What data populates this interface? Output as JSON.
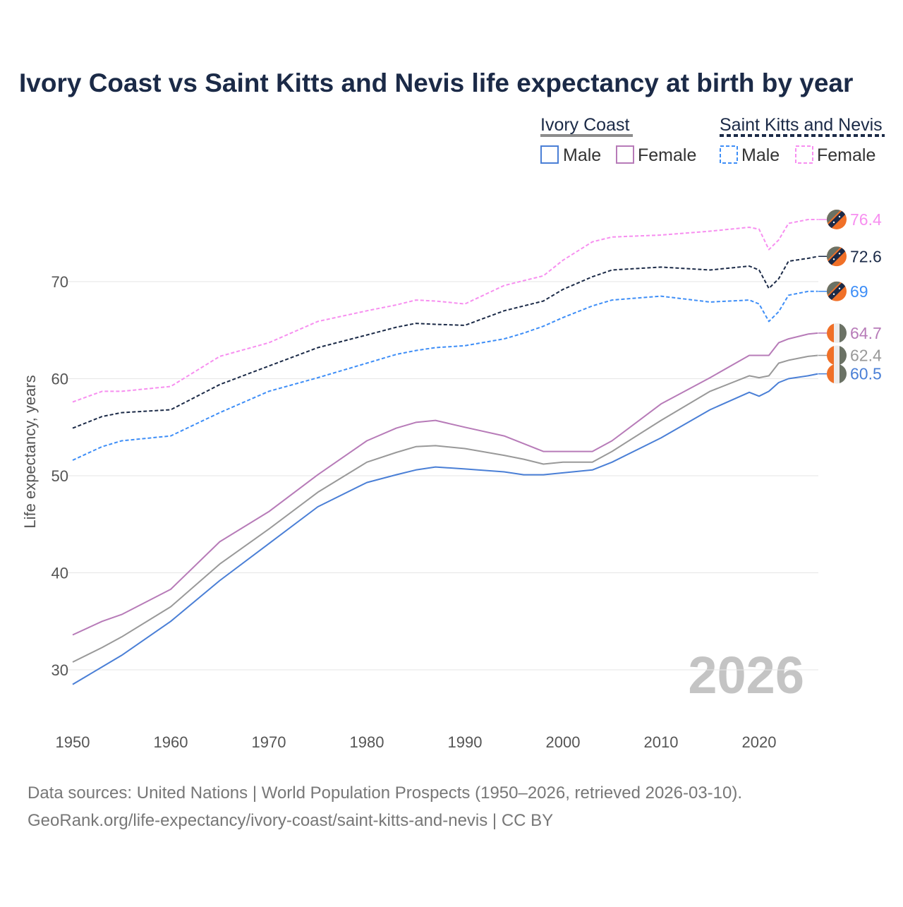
{
  "chart_data": {
    "type": "line",
    "title": "Ivory Coast vs Saint Kitts and Nevis life expectancy at birth by year",
    "xlabel": "",
    "ylabel": "Life expectancy, years",
    "xlim": [
      1950,
      2026
    ],
    "ylim": [
      26,
      79
    ],
    "x_ticks": [
      1950,
      1960,
      1970,
      1980,
      1990,
      2000,
      2010,
      2020
    ],
    "y_ticks": [
      30,
      40,
      50,
      60,
      70
    ],
    "grid": "horizontal",
    "watermark_year": "2026",
    "legend": {
      "placement": "top-right",
      "groups": [
        {
          "name": "Ivory Coast",
          "style": "solid",
          "color": "#8c8c8c",
          "items": [
            "Male",
            "Female"
          ]
        },
        {
          "name": "Saint Kitts and Nevis",
          "style": "dashed",
          "color": "#1b2a47",
          "items": [
            "Male",
            "Female"
          ]
        }
      ]
    },
    "x": [
      1950,
      1953,
      1955,
      1960,
      1965,
      1970,
      1975,
      1980,
      1983,
      1985,
      1987,
      1990,
      1994,
      1996,
      1998,
      2000,
      2003,
      2005,
      2010,
      2015,
      2019,
      2020,
      2021,
      2022,
      2023,
      2025,
      2026
    ],
    "series": [
      {
        "name": "Saint Kitts and Nevis Female",
        "country": "skn",
        "dashed": true,
        "color": "#f78ff0",
        "end_label": "76.4",
        "values": [
          57.6,
          58.7,
          58.7,
          59.2,
          62.3,
          63.7,
          65.9,
          67.0,
          67.6,
          68.1,
          68.0,
          67.7,
          69.6,
          70.1,
          70.6,
          72.2,
          74.1,
          74.6,
          74.8,
          75.2,
          75.6,
          75.4,
          73.3,
          74.3,
          76.0,
          76.4,
          76.4
        ]
      },
      {
        "name": "Saint Kitts and Nevis",
        "country": "skn",
        "dashed": true,
        "color": "#1b2a47",
        "end_label": "72.6",
        "values": [
          54.9,
          56.1,
          56.5,
          56.8,
          59.4,
          61.3,
          63.2,
          64.5,
          65.3,
          65.7,
          65.6,
          65.5,
          67.0,
          67.5,
          68.0,
          69.2,
          70.5,
          71.2,
          71.5,
          71.2,
          71.6,
          71.2,
          69.3,
          70.3,
          72.1,
          72.4,
          72.6
        ]
      },
      {
        "name": "Saint Kitts and Nevis Male",
        "country": "skn",
        "dashed": true,
        "color": "#3e8ef7",
        "end_label": "69",
        "values": [
          51.6,
          53.0,
          53.6,
          54.1,
          56.5,
          58.7,
          60.1,
          61.6,
          62.5,
          62.9,
          63.2,
          63.4,
          64.1,
          64.7,
          65.4,
          66.3,
          67.5,
          68.1,
          68.5,
          67.9,
          68.1,
          67.7,
          65.9,
          66.9,
          68.6,
          69.0,
          69.0
        ]
      },
      {
        "name": "Ivory Coast Female",
        "country": "ic",
        "dashed": false,
        "color": "#b77bb8",
        "end_label": "64.7",
        "values": [
          33.6,
          35.0,
          35.7,
          38.3,
          43.2,
          46.3,
          50.1,
          53.6,
          54.9,
          55.5,
          55.7,
          55.0,
          54.1,
          53.3,
          52.5,
          52.5,
          52.5,
          53.6,
          57.4,
          60.1,
          62.4,
          62.4,
          62.4,
          63.7,
          64.1,
          64.6,
          64.7
        ]
      },
      {
        "name": "Ivory Coast",
        "country": "ic",
        "dashed": false,
        "color": "#999999",
        "end_label": "62.4",
        "values": [
          30.8,
          32.3,
          33.4,
          36.5,
          40.9,
          44.5,
          48.3,
          51.4,
          52.4,
          53.0,
          53.1,
          52.8,
          52.1,
          51.7,
          51.2,
          51.4,
          51.4,
          52.5,
          55.7,
          58.7,
          60.3,
          60.1,
          60.3,
          61.6,
          61.9,
          62.3,
          62.4
        ]
      },
      {
        "name": "Ivory Coast Male",
        "country": "ic",
        "dashed": false,
        "color": "#4a7fd6",
        "end_label": "60.5",
        "values": [
          28.5,
          30.3,
          31.5,
          35.0,
          39.2,
          43.0,
          46.8,
          49.3,
          50.1,
          50.6,
          50.9,
          50.7,
          50.4,
          50.1,
          50.1,
          50.3,
          50.6,
          51.4,
          53.9,
          56.8,
          58.6,
          58.2,
          58.7,
          59.6,
          60.0,
          60.3,
          60.5
        ]
      }
    ]
  },
  "footer": {
    "line1": "Data sources: United Nations | World Population Prospects (1950–2026, retrieved 2026-03-10).",
    "line2": "GeoRank.org/life-expectancy/ivory-coast/saint-kitts-and-nevis | CC BY"
  }
}
